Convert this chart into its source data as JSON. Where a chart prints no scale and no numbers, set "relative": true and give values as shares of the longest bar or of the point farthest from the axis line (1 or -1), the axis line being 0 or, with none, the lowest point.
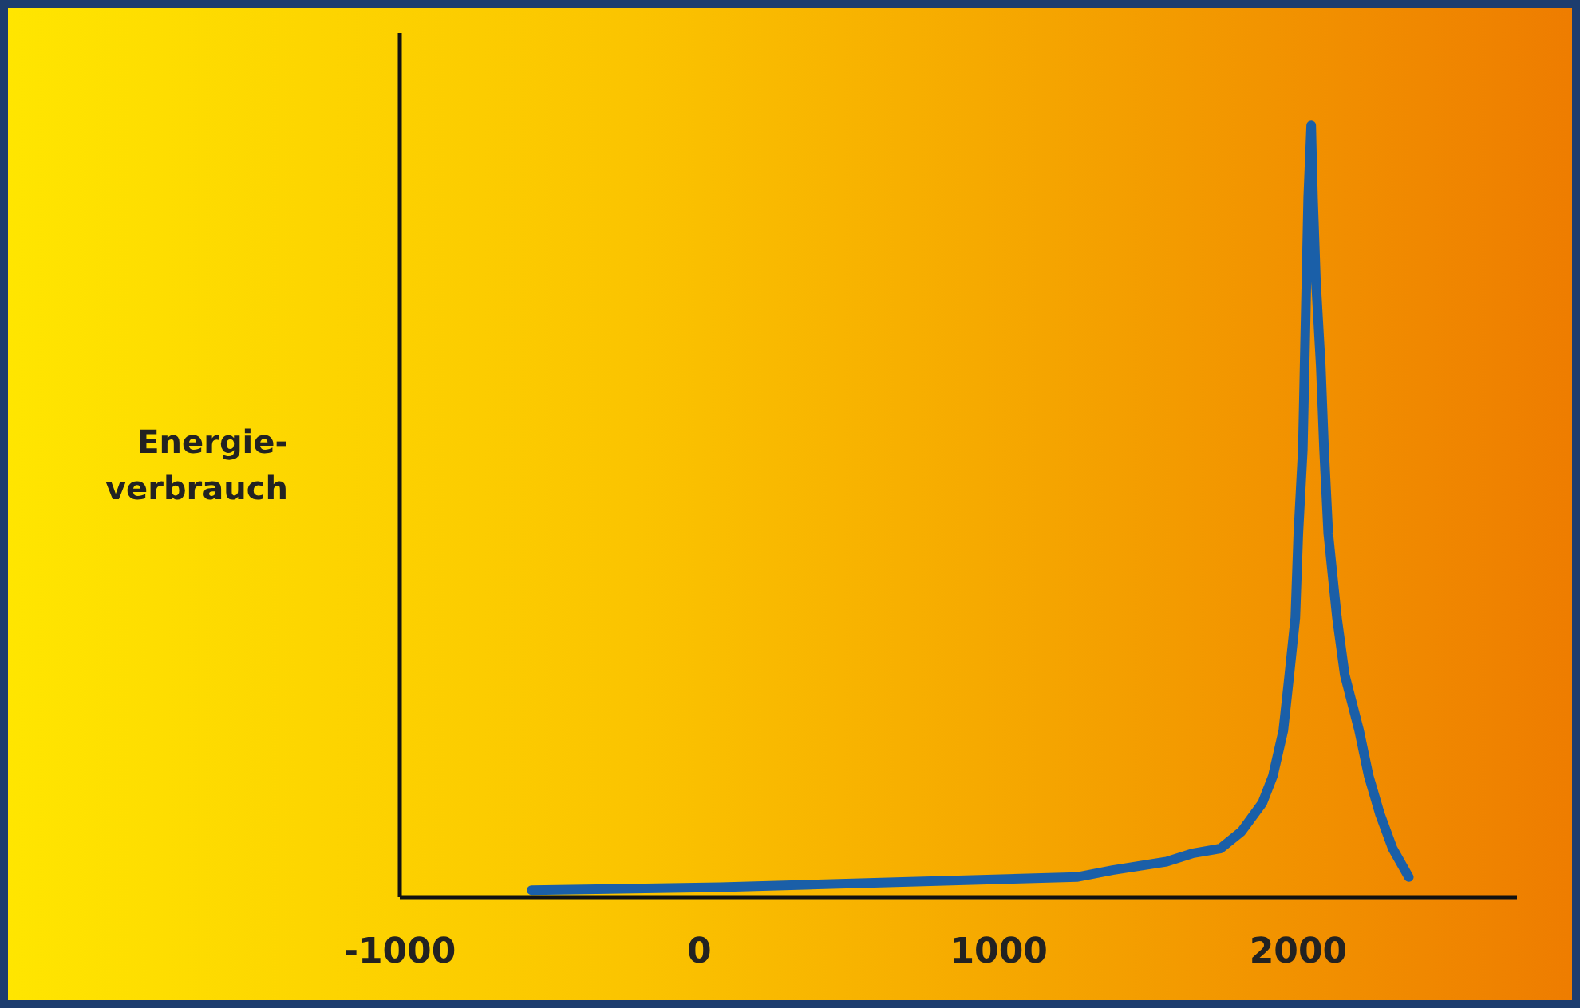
{
  "chart_data": {
    "type": "line",
    "ylabel": "Energie-\nverbrauch",
    "relative": true,
    "xlim": [
      -1000,
      2730
    ],
    "xticks": [
      -1000,
      0,
      1000,
      2000
    ],
    "grid": false,
    "marker": "none",
    "line_style": "solid",
    "series": [
      {
        "color": "#1a5fa8",
        "x": [
          -560,
          70,
          1260,
          1380,
          1560,
          1650,
          1740,
          1810,
          1880,
          1915,
          1950,
          1970,
          1990,
          2000,
          2015,
          2027,
          2033,
          2043,
          2049,
          2059,
          2075,
          2086,
          2100,
          2129,
          2155,
          2203,
          2235,
          2273,
          2315,
          2369
        ],
        "values": [
          0.009,
          0.013,
          0.026,
          0.035,
          0.046,
          0.057,
          0.063,
          0.085,
          0.122,
          0.157,
          0.216,
          0.288,
          0.362,
          0.471,
          0.58,
          0.797,
          0.906,
          1.0,
          0.906,
          0.797,
          0.688,
          0.58,
          0.471,
          0.362,
          0.288,
          0.216,
          0.157,
          0.107,
          0.063,
          0.026
        ]
      }
    ]
  }
}
